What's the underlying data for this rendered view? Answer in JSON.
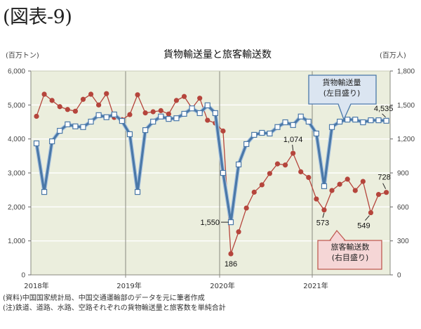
{
  "figure_label": "(図表-9)",
  "chart_title": "貨物輸送量と旅客輸送数",
  "left_axis_unit": "(百万トン)",
  "right_axis_unit": "(百万人)",
  "left_ticks": [
    "6,000",
    "5,000",
    "4,000",
    "3,000",
    "2,000",
    "1,000",
    "0"
  ],
  "right_ticks": [
    "1,800",
    "1,500",
    "1,200",
    "900",
    "600",
    "300",
    "0"
  ],
  "x_labels": [
    "2018年",
    "2019年",
    "2020年",
    "2021年"
  ],
  "callouts": {
    "freight_line1": "貨物輸送量",
    "freight_line2": "(左目盛り)",
    "passenger_line1": "旅客輸送数",
    "passenger_line2": "(右目盛り)"
  },
  "annotations": {
    "freight_min": "1,550",
    "freight_last": "4,535",
    "pass_min": "186",
    "pass_peak": "1,074",
    "pass_2021feb": "573",
    "pass_2021aug": "549",
    "pass_last": "728"
  },
  "notes": {
    "source": "(資料)中国国家統計局、中国交通運輸部のデータを元に筆者作成",
    "note": "(注)鉄道、道路、水路、空路それぞれの貨物輸送量と旅客数を単純合計"
  },
  "colors": {
    "plot_bg": "#ebeedd",
    "freight": "#4a78a8",
    "passenger": "#b5453c",
    "freight_callout_bg": "#dbe5f1",
    "passenger_callout_bg": "#f5d6d6"
  },
  "chart_data": {
    "type": "line",
    "title": "貨物輸送量と旅客輸送数",
    "xlabel": "",
    "ylabel": "百万トン",
    "y2label": "百万人",
    "ylim": [
      0,
      6000
    ],
    "y2lim": [
      0,
      1800
    ],
    "grid": true,
    "x": [
      "2018-01",
      "2018-02",
      "2018-03",
      "2018-04",
      "2018-05",
      "2018-06",
      "2018-07",
      "2018-08",
      "2018-09",
      "2018-10",
      "2018-11",
      "2018-12",
      "2019-01",
      "2019-02",
      "2019-03",
      "2019-04",
      "2019-05",
      "2019-06",
      "2019-07",
      "2019-08",
      "2019-09",
      "2019-10",
      "2019-11",
      "2019-12",
      "2020-01",
      "2020-02",
      "2020-03",
      "2020-04",
      "2020-05",
      "2020-06",
      "2020-07",
      "2020-08",
      "2020-09",
      "2020-10",
      "2020-11",
      "2020-12",
      "2021-01",
      "2021-02",
      "2021-03",
      "2021-04",
      "2021-05",
      "2021-06",
      "2021-07",
      "2021-08",
      "2021-09",
      "2021-10"
    ],
    "series": [
      {
        "name": "貨物輸送量(左目盛り)",
        "axis": "left",
        "unit": "百万トン",
        "values": [
          3870,
          2440,
          3930,
          4240,
          4430,
          4370,
          4350,
          4510,
          4700,
          4640,
          4720,
          4530,
          4140,
          2440,
          4260,
          4510,
          4660,
          4590,
          4610,
          4740,
          4900,
          4760,
          4990,
          4760,
          3000,
          1550,
          3250,
          3850,
          4120,
          4180,
          4160,
          4350,
          4490,
          4410,
          4660,
          4510,
          4160,
          2610,
          4350,
          4510,
          4570,
          4570,
          4490,
          4550,
          4550,
          4535
        ]
      },
      {
        "name": "旅客輸送数(右目盛り)",
        "axis": "right",
        "unit": "百万人",
        "values": [
          1400,
          1595,
          1540,
          1485,
          1460,
          1445,
          1550,
          1595,
          1500,
          1600,
          1390,
          1370,
          1415,
          1590,
          1430,
          1440,
          1450,
          1420,
          1540,
          1575,
          1470,
          1560,
          1365,
          1340,
          1270,
          186,
          380,
          590,
          730,
          795,
          895,
          980,
          970,
          1074,
          910,
          860,
          670,
          573,
          745,
          800,
          845,
          745,
          825,
          549,
          710,
          728
        ]
      }
    ],
    "annotations": [
      "1,550",
      "4,535",
      "186",
      "1,074",
      "573",
      "549",
      "728"
    ],
    "legend": "callout boxes"
  }
}
